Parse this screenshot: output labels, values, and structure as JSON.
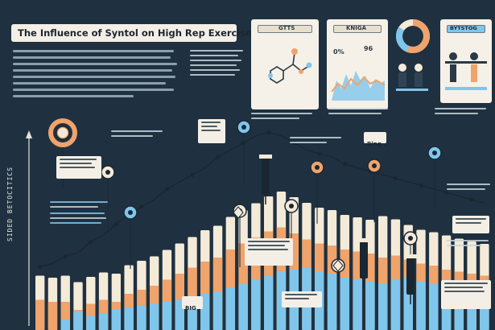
{
  "header": {
    "title": "The Influence of Syntol on High Rep Exercises"
  },
  "side_label": "SIDED BETOCITICS",
  "panels": {
    "molecule_title": "GTTS",
    "chart_title": "KNIGA",
    "chart_value_left": "0%",
    "chart_value_right": "96",
    "athletes_title": "BYTSTOG"
  },
  "callouts": {
    "bar_label_a": "BIG",
    "bar_label_b": "Bing"
  },
  "colors": {
    "background": "#1f3140",
    "orange": "#f0a36a",
    "cream": "#f4ead8",
    "blue": "#7fc6ec",
    "line": "#1a2733"
  },
  "chart_data": {
    "type": "bar",
    "bars": [
      {
        "cream": 10,
        "orange": 30,
        "blue": 0
      },
      {
        "cream": 12,
        "orange": 28,
        "blue": 0
      },
      {
        "cream": 18,
        "orange": 28,
        "blue": 10
      },
      {
        "cream": 14,
        "orange": 20,
        "blue": 18
      },
      {
        "cream": 22,
        "orange": 26,
        "blue": 14
      },
      {
        "cream": 20,
        "orange": 30,
        "blue": 16
      },
      {
        "cream": 28,
        "orange": 28,
        "blue": 20
      },
      {
        "cream": 26,
        "orange": 36,
        "blue": 22
      },
      {
        "cream": 30,
        "orange": 40,
        "blue": 24
      },
      {
        "cream": 36,
        "orange": 44,
        "blue": 26
      },
      {
        "cream": 40,
        "orange": 50,
        "blue": 28
      },
      {
        "cream": 44,
        "orange": 56,
        "blue": 30
      },
      {
        "cream": 46,
        "orange": 62,
        "blue": 32
      },
      {
        "cream": 52,
        "orange": 68,
        "blue": 36
      },
      {
        "cream": 58,
        "orange": 72,
        "blue": 38
      },
      {
        "cream": 64,
        "orange": 80,
        "blue": 42
      },
      {
        "cream": 70,
        "orange": 86,
        "blue": 46
      },
      {
        "cream": 76,
        "orange": 92,
        "blue": 50
      },
      {
        "cream": 80,
        "orange": 98,
        "blue": 54
      },
      {
        "cream": 76,
        "orange": 102,
        "blue": 58
      },
      {
        "cream": 70,
        "orange": 96,
        "blue": 60
      },
      {
        "cream": 68,
        "orange": 90,
        "blue": 62
      },
      {
        "cream": 72,
        "orange": 86,
        "blue": 58
      },
      {
        "cream": 66,
        "orange": 84,
        "blue": 56
      },
      {
        "cream": 60,
        "orange": 80,
        "blue": 52
      },
      {
        "cream": 64,
        "orange": 78,
        "blue": 50
      },
      {
        "cream": 72,
        "orange": 76,
        "blue": 48
      },
      {
        "cream": 80,
        "orange": 72,
        "blue": 46
      },
      {
        "cream": 76,
        "orange": 74,
        "blue": 50
      },
      {
        "cream": 68,
        "orange": 70,
        "blue": 52
      },
      {
        "cream": 64,
        "orange": 66,
        "blue": 48
      },
      {
        "cream": 60,
        "orange": 64,
        "blue": 46
      },
      {
        "cream": 56,
        "orange": 60,
        "blue": 50
      },
      {
        "cream": 52,
        "orange": 58,
        "blue": 44
      },
      {
        "cream": 50,
        "orange": 56,
        "blue": 40
      },
      {
        "cream": 48,
        "orange": 54,
        "blue": 38
      }
    ],
    "trend": [
      22,
      24,
      28,
      30,
      36,
      40,
      46,
      52,
      56,
      60,
      66,
      70,
      74,
      78,
      84,
      88,
      92,
      96,
      98,
      96,
      92,
      88,
      86,
      84,
      80,
      78,
      76,
      74,
      72,
      70,
      68,
      66,
      64,
      62,
      60,
      58
    ]
  }
}
